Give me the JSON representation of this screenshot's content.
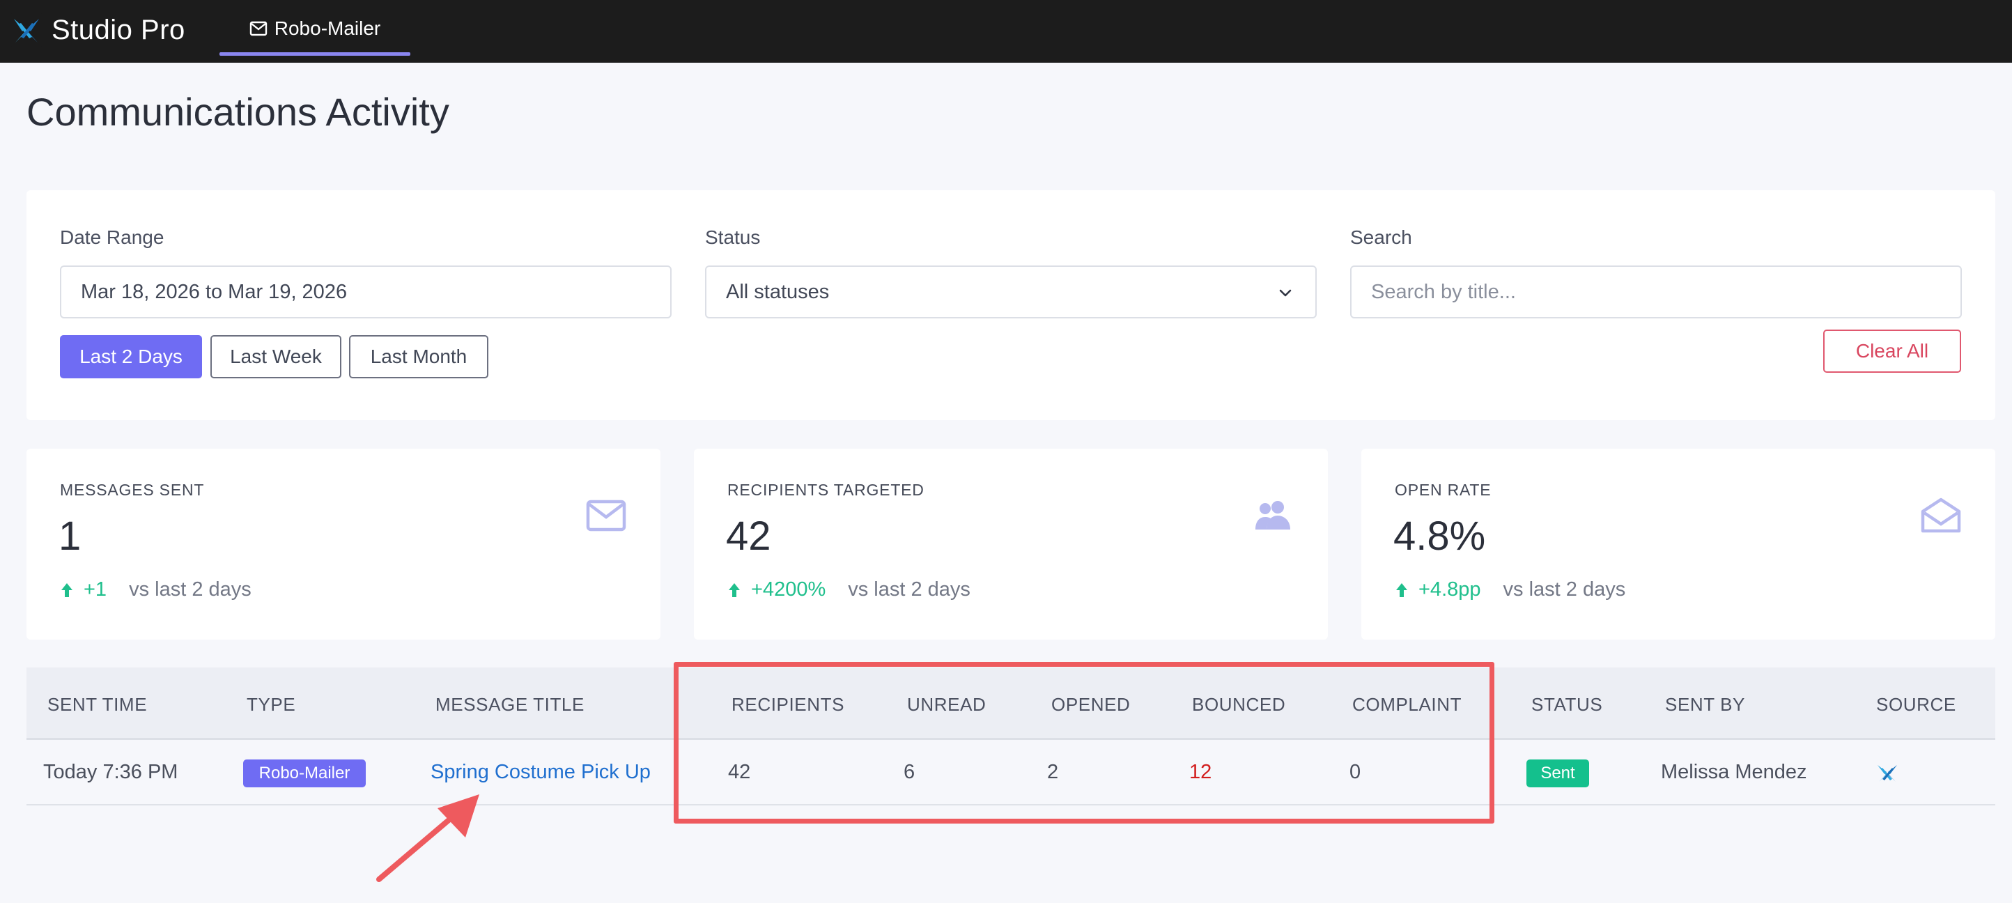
{
  "app": {
    "name": "Studio Pro",
    "logo_icon": "studio-pro-x-logo"
  },
  "nav": {
    "active_tab": {
      "label": "Robo-Mailer",
      "icon": "mail-icon"
    }
  },
  "page": {
    "title": "Communications Activity"
  },
  "filters": {
    "date_range": {
      "label": "Date Range",
      "value": "Mar 18, 2026 to Mar 19, 2026"
    },
    "status": {
      "label": "Status",
      "value": "All statuses"
    },
    "search": {
      "label": "Search",
      "placeholder": "Search by title..."
    },
    "quick_ranges": [
      "Last 2 Days",
      "Last Week",
      "Last Month"
    ],
    "active_range": "Last 2 Days",
    "clear_label": "Clear All"
  },
  "stats": [
    {
      "label": "MESSAGES SENT",
      "value": "1",
      "delta": "+1",
      "compare": "vs last 2 days",
      "icon": "envelope-icon"
    },
    {
      "label": "RECIPIENTS TARGETED",
      "value": "42",
      "delta": "+4200%",
      "compare": "vs last 2 days",
      "icon": "people-icon"
    },
    {
      "label": "OPEN RATE",
      "value": "4.8%",
      "delta": "+4.8pp",
      "compare": "vs last 2 days",
      "icon": "envelope-open-icon"
    }
  ],
  "table": {
    "columns": [
      "SENT TIME",
      "TYPE",
      "MESSAGE TITLE",
      "RECIPIENTS",
      "UNREAD",
      "OPENED",
      "BOUNCED",
      "COMPLAINT",
      "STATUS",
      "SENT BY",
      "SOURCE"
    ],
    "rows": [
      {
        "sent_time": "Today 7:36 PM",
        "type": "Robo-Mailer",
        "title": "Spring Costume Pick Up",
        "recipients": "42",
        "unread": "6",
        "opened": "2",
        "bounced": "12",
        "complaint": "0",
        "status": "Sent",
        "sent_by": "Melissa Mendez",
        "source_icon": "studio-pro-x-logo"
      }
    ]
  },
  "colors": {
    "accent": "#6f6cf3",
    "positive": "#1fbf8c",
    "danger": "#d9465f",
    "bounced": "#d21e1e",
    "annotation": "#ee5a5e",
    "topbar": "#1c1c1c"
  }
}
